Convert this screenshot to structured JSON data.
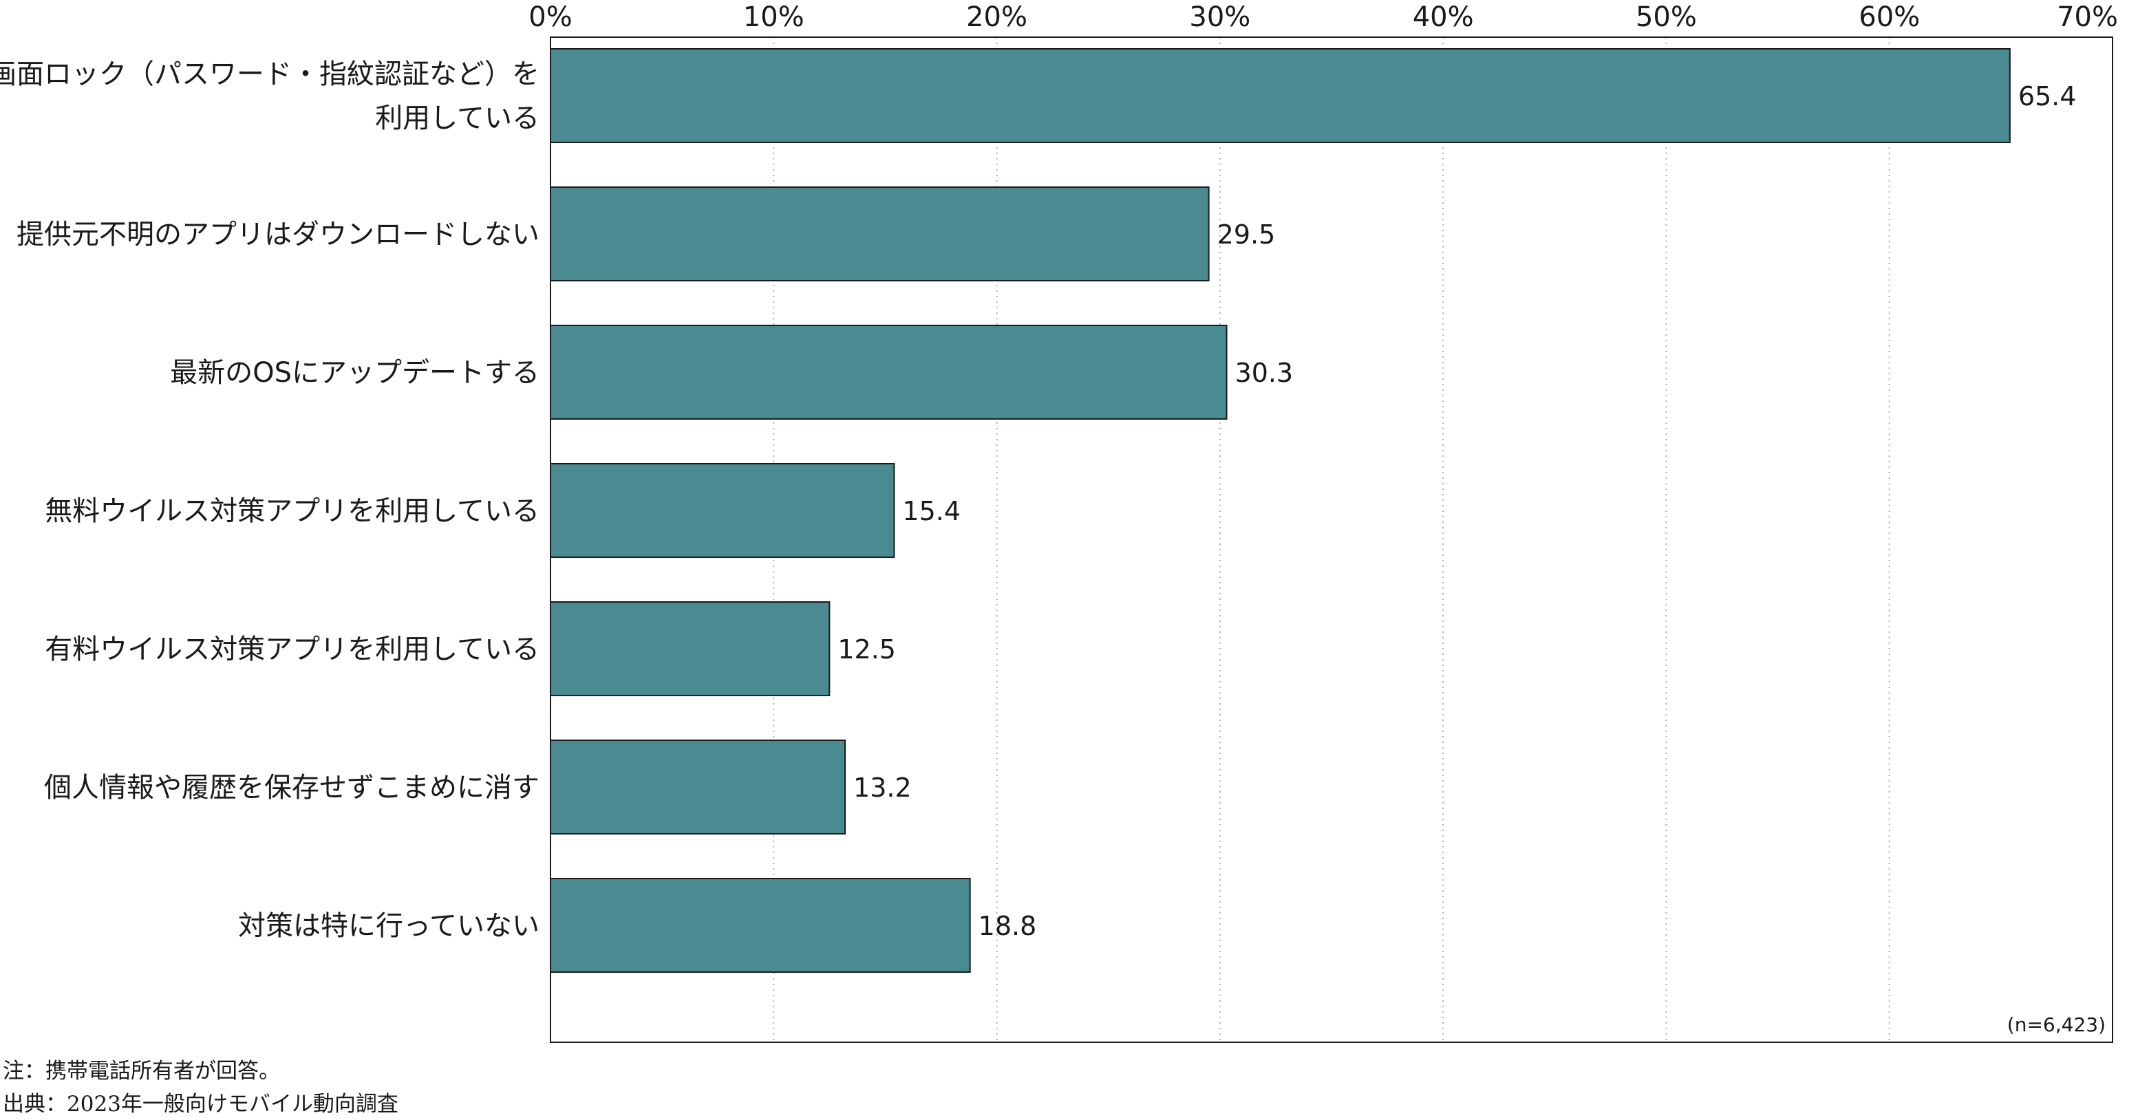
{
  "chart_data": {
    "type": "bar",
    "orientation": "horizontal",
    "categories": [
      "画面ロック（パスワード・指紋認証など）を利用している",
      "提供元不明のアプリはダウンロードしない",
      "最新のOSにアップデートする",
      "無料ウイルス対策アプリを利用している",
      "有料ウイルス対策アプリを利用している",
      "個人情報や履歴を保存せずこまめに消す",
      "対策は特に行っていない"
    ],
    "category_lines": [
      [
        "画面ロック（パスワード・指紋認証など）を",
        "利用している"
      ],
      [
        "提供元不明のアプリはダウンロードしない"
      ],
      [
        "最新のOSにアップデートする"
      ],
      [
        "無料ウイルス対策アプリを利用している"
      ],
      [
        "有料ウイルス対策アプリを利用している"
      ],
      [
        "個人情報や履歴を保存せずこまめに消す"
      ],
      [
        "対策は特に行っていない"
      ]
    ],
    "values": [
      65.4,
      29.5,
      30.3,
      15.4,
      12.5,
      13.2,
      18.8
    ],
    "value_labels": [
      "65.4",
      "29.5",
      "30.3",
      "15.4",
      "12.5",
      "13.2",
      "18.8"
    ],
    "xlim": [
      0,
      70
    ],
    "xticks": [
      0,
      10,
      20,
      30,
      40,
      50,
      60,
      70
    ],
    "xtick_labels": [
      "0%",
      "10%",
      "20%",
      "30%",
      "40%",
      "50%",
      "60%",
      "70%"
    ],
    "axis_position": "top",
    "grid": "vertical dotted",
    "bar_color": "#4a8a91",
    "bar_edge_color": "#1a1a1a",
    "sample_size": "(n=6,423)"
  },
  "notes": {
    "note": "注：携帯電話所有者が回答。",
    "source": "出典：2023年一般向けモバイル動向調査"
  }
}
